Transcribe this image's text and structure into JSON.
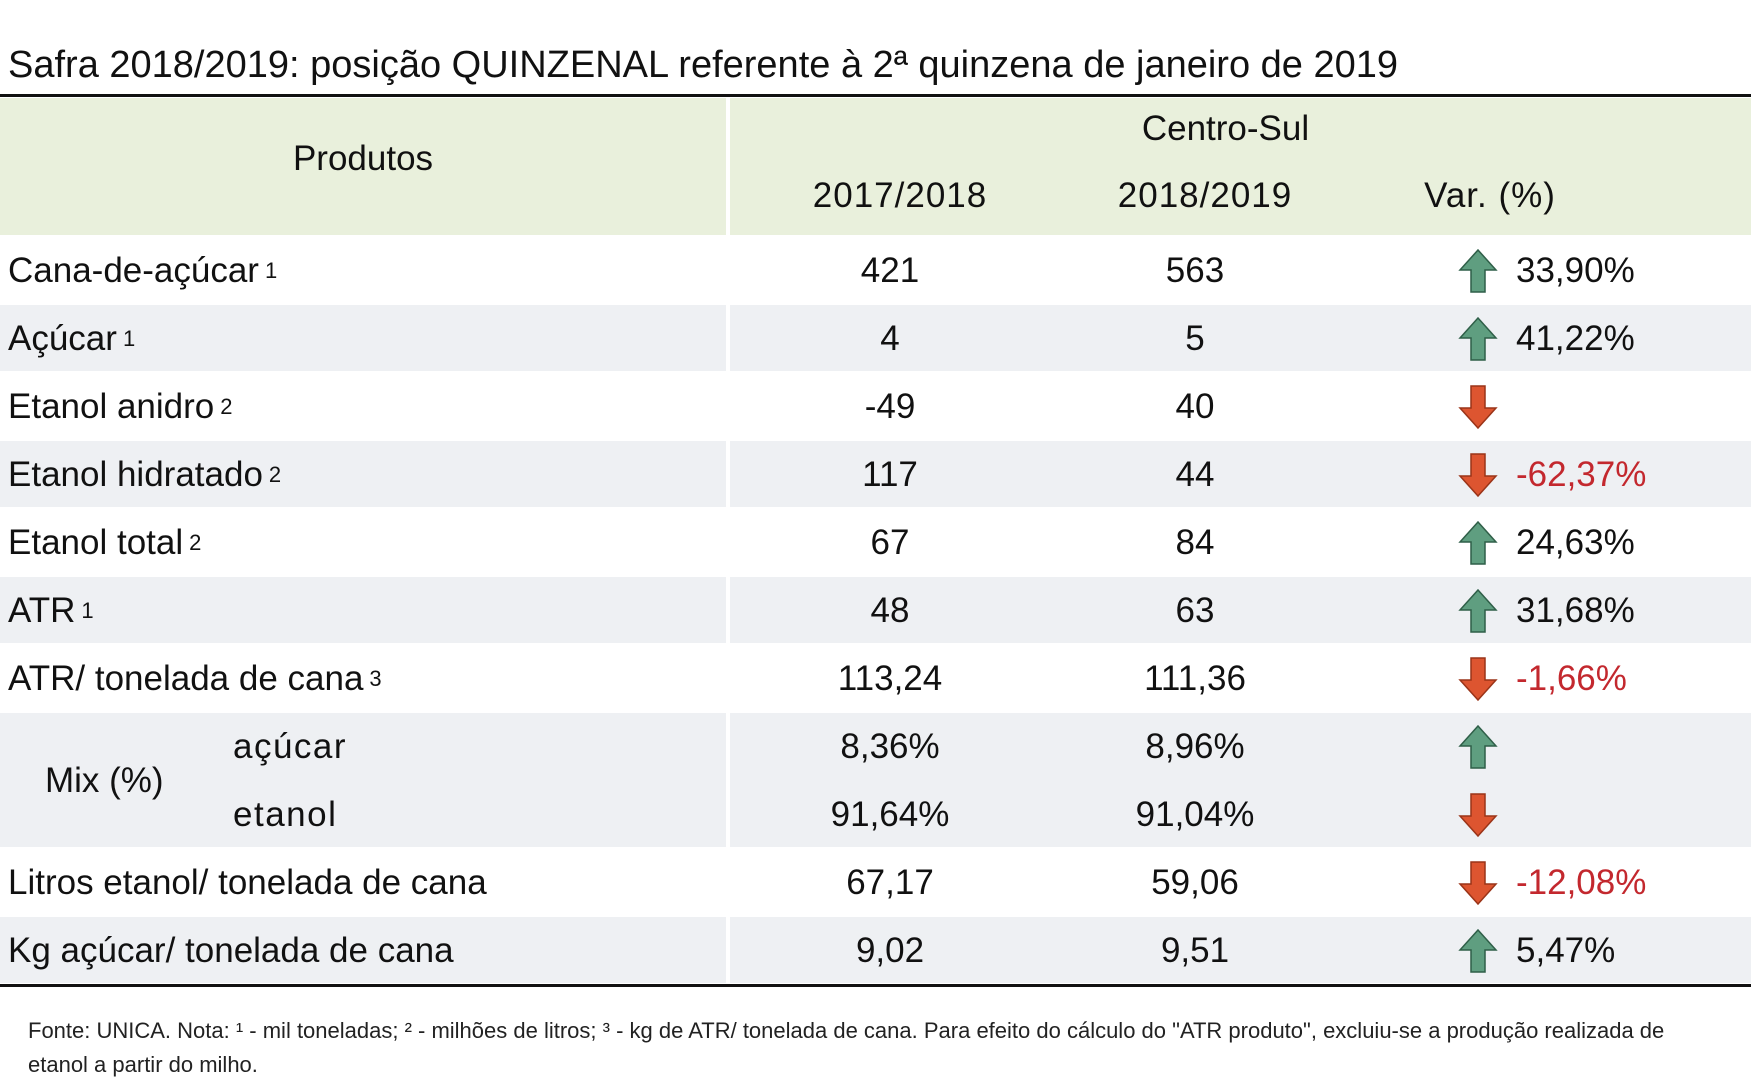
{
  "title": "Safra 2018/2019: posição QUINZENAL referente à 2ª quinzena de janeiro de 2019",
  "header": {
    "products": "Produtos",
    "region": "Centro-Sul",
    "columns": [
      "2017/2018",
      "2018/2019",
      "Var. (%)"
    ]
  },
  "rows": [
    {
      "label": "Cana-de-açúcar",
      "note": "1",
      "values": [
        "421",
        "563",
        "33,90%"
      ],
      "trend": "up"
    },
    {
      "label": "Açúcar",
      "note": "1",
      "values": [
        "4",
        "5",
        "41,22%"
      ],
      "trend": "up"
    },
    {
      "label": "Etanol anidro",
      "note": "2",
      "values": [
        "-49",
        "40"
      ],
      "trend": "down"
    },
    {
      "label": "Etanol hidratado",
      "note": "2",
      "values": [
        "117",
        "44",
        "-62,37%"
      ],
      "trend": "down"
    },
    {
      "label": "Etanol total",
      "note": "2",
      "values": [
        "67",
        "84",
        "24,63%"
      ],
      "trend": "up"
    },
    {
      "label": "ATR",
      "note": "1",
      "values": [
        "48",
        "63",
        "31,68%"
      ],
      "trend": "up"
    },
    {
      "label": "ATR/ tonelada de cana",
      "note": "3",
      "values": [
        "113,24",
        "111,36",
        "-1,66%"
      ],
      "trend": "down"
    },
    {
      "label": "Mix (%)",
      "subrows": [
        {
          "label": "açúcar",
          "values": [
            "8,36%",
            "8,96%"
          ],
          "trend": "up"
        },
        {
          "label": "etanol",
          "values": [
            "91,64%",
            "91,04%"
          ],
          "trend": "down"
        }
      ]
    },
    {
      "label": "Litros etanol/ tonelada de cana",
      "values": [
        "67,17",
        "59,06",
        "-12,08%"
      ],
      "trend": "down"
    },
    {
      "label": "Kg açúcar/ tonelada de cana",
      "values": [
        "9,02",
        "9,51",
        "5,47%"
      ],
      "trend": "up"
    }
  ],
  "footnote": "Fonte: UNICA. Nota: ¹ - mil toneladas; ² - milhões de litros; ³ - kg de ATR/ tonelada de cana. Para efeito do cálculo do \"ATR produto\", excluiu-se a produção realizada de etanol a partir do milho."
}
